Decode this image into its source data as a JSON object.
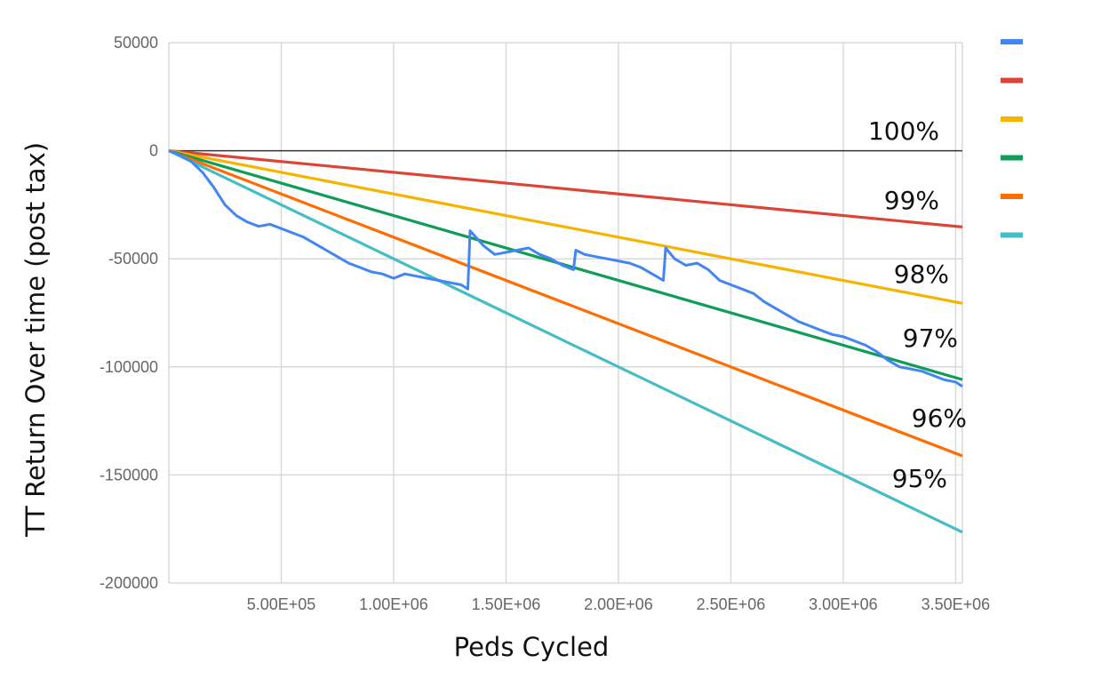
{
  "chart_data": {
    "type": "line",
    "xlabel": "Peds Cycled",
    "ylabel": "TT Return Over time (post tax)",
    "xlim": [
      0,
      3530000
    ],
    "ylim": [
      -200000,
      50000
    ],
    "x_ticks": [
      {
        "value": 500000,
        "label": "5.00E+05"
      },
      {
        "value": 1000000,
        "label": "1.00E+06"
      },
      {
        "value": 1500000,
        "label": "1.50E+06"
      },
      {
        "value": 2000000,
        "label": "2.00E+06"
      },
      {
        "value": 2500000,
        "label": "2.50E+06"
      },
      {
        "value": 3000000,
        "label": "3.00E+06"
      },
      {
        "value": 3500000,
        "label": "3.50E+06"
      }
    ],
    "y_ticks": [
      {
        "value": 50000,
        "label": "50000"
      },
      {
        "value": 0,
        "label": "0"
      },
      {
        "value": -50000,
        "label": "-50000"
      },
      {
        "value": -100000,
        "label": "-100000"
      },
      {
        "value": -150000,
        "label": "-150000"
      },
      {
        "value": -200000,
        "label": "-200000"
      }
    ],
    "grid": true,
    "legend_position": "right",
    "zero_line": {
      "value": 0,
      "label": "100%",
      "color": "#333333"
    },
    "series": [
      {
        "color": "#4285f4",
        "x": [
          0,
          50000,
          100000,
          150000,
          200000,
          250000,
          300000,
          350000,
          400000,
          450000,
          500000,
          550000,
          600000,
          650000,
          700000,
          750000,
          800000,
          850000,
          900000,
          950000,
          1000000,
          1050000,
          1100000,
          1150000,
          1200000,
          1250000,
          1300000,
          1330000,
          1340000,
          1400000,
          1450000,
          1500000,
          1550000,
          1600000,
          1650000,
          1700000,
          1750000,
          1800000,
          1810000,
          1850000,
          1900000,
          1950000,
          2000000,
          2050000,
          2100000,
          2150000,
          2200000,
          2210000,
          2250000,
          2300000,
          2350000,
          2400000,
          2450000,
          2500000,
          2550000,
          2600000,
          2650000,
          2700000,
          2750000,
          2800000,
          2850000,
          2900000,
          2950000,
          3000000,
          3050000,
          3100000,
          3150000,
          3200000,
          3250000,
          3300000,
          3350000,
          3400000,
          3450000,
          3500000,
          3530000
        ],
        "values": [
          0,
          -2000,
          -5000,
          -10000,
          -17000,
          -25000,
          -30000,
          -33000,
          -35000,
          -34000,
          -36000,
          -38000,
          -40000,
          -43000,
          -46000,
          -49000,
          -52000,
          -54000,
          -56000,
          -57000,
          -59000,
          -57000,
          -58000,
          -59000,
          -60000,
          -61000,
          -62000,
          -64000,
          -37000,
          -44000,
          -48000,
          -47000,
          -46000,
          -45000,
          -48000,
          -50000,
          -53000,
          -55000,
          -46000,
          -48000,
          -49000,
          -50000,
          -51000,
          -52000,
          -54000,
          -57000,
          -60000,
          -45000,
          -50000,
          -53000,
          -52000,
          -55000,
          -60000,
          -62000,
          -64000,
          -66000,
          -70000,
          -73000,
          -76000,
          -79000,
          -81000,
          -83000,
          -85000,
          -86000,
          -88000,
          -90000,
          -93000,
          -97000,
          -100000,
          -101000,
          -102000,
          -104000,
          -106000,
          -107000,
          -109000
        ]
      },
      {
        "color": "#db4437",
        "x": [
          0,
          3530000
        ],
        "values": [
          0,
          -35300
        ],
        "label": "99%"
      },
      {
        "color": "#f4b400",
        "x": [
          0,
          3530000
        ],
        "values": [
          0,
          -70600
        ],
        "label": "98%"
      },
      {
        "color": "#0f9d58",
        "x": [
          0,
          3530000
        ],
        "values": [
          0,
          -105900
        ],
        "label": "97%"
      },
      {
        "color": "#ff6d01",
        "x": [
          0,
          3530000
        ],
        "values": [
          0,
          -141200
        ],
        "label": "96%"
      },
      {
        "color": "#46bdc6",
        "x": [
          0,
          3530000
        ],
        "values": [
          0,
          -176500
        ],
        "label": "95%"
      }
    ]
  }
}
